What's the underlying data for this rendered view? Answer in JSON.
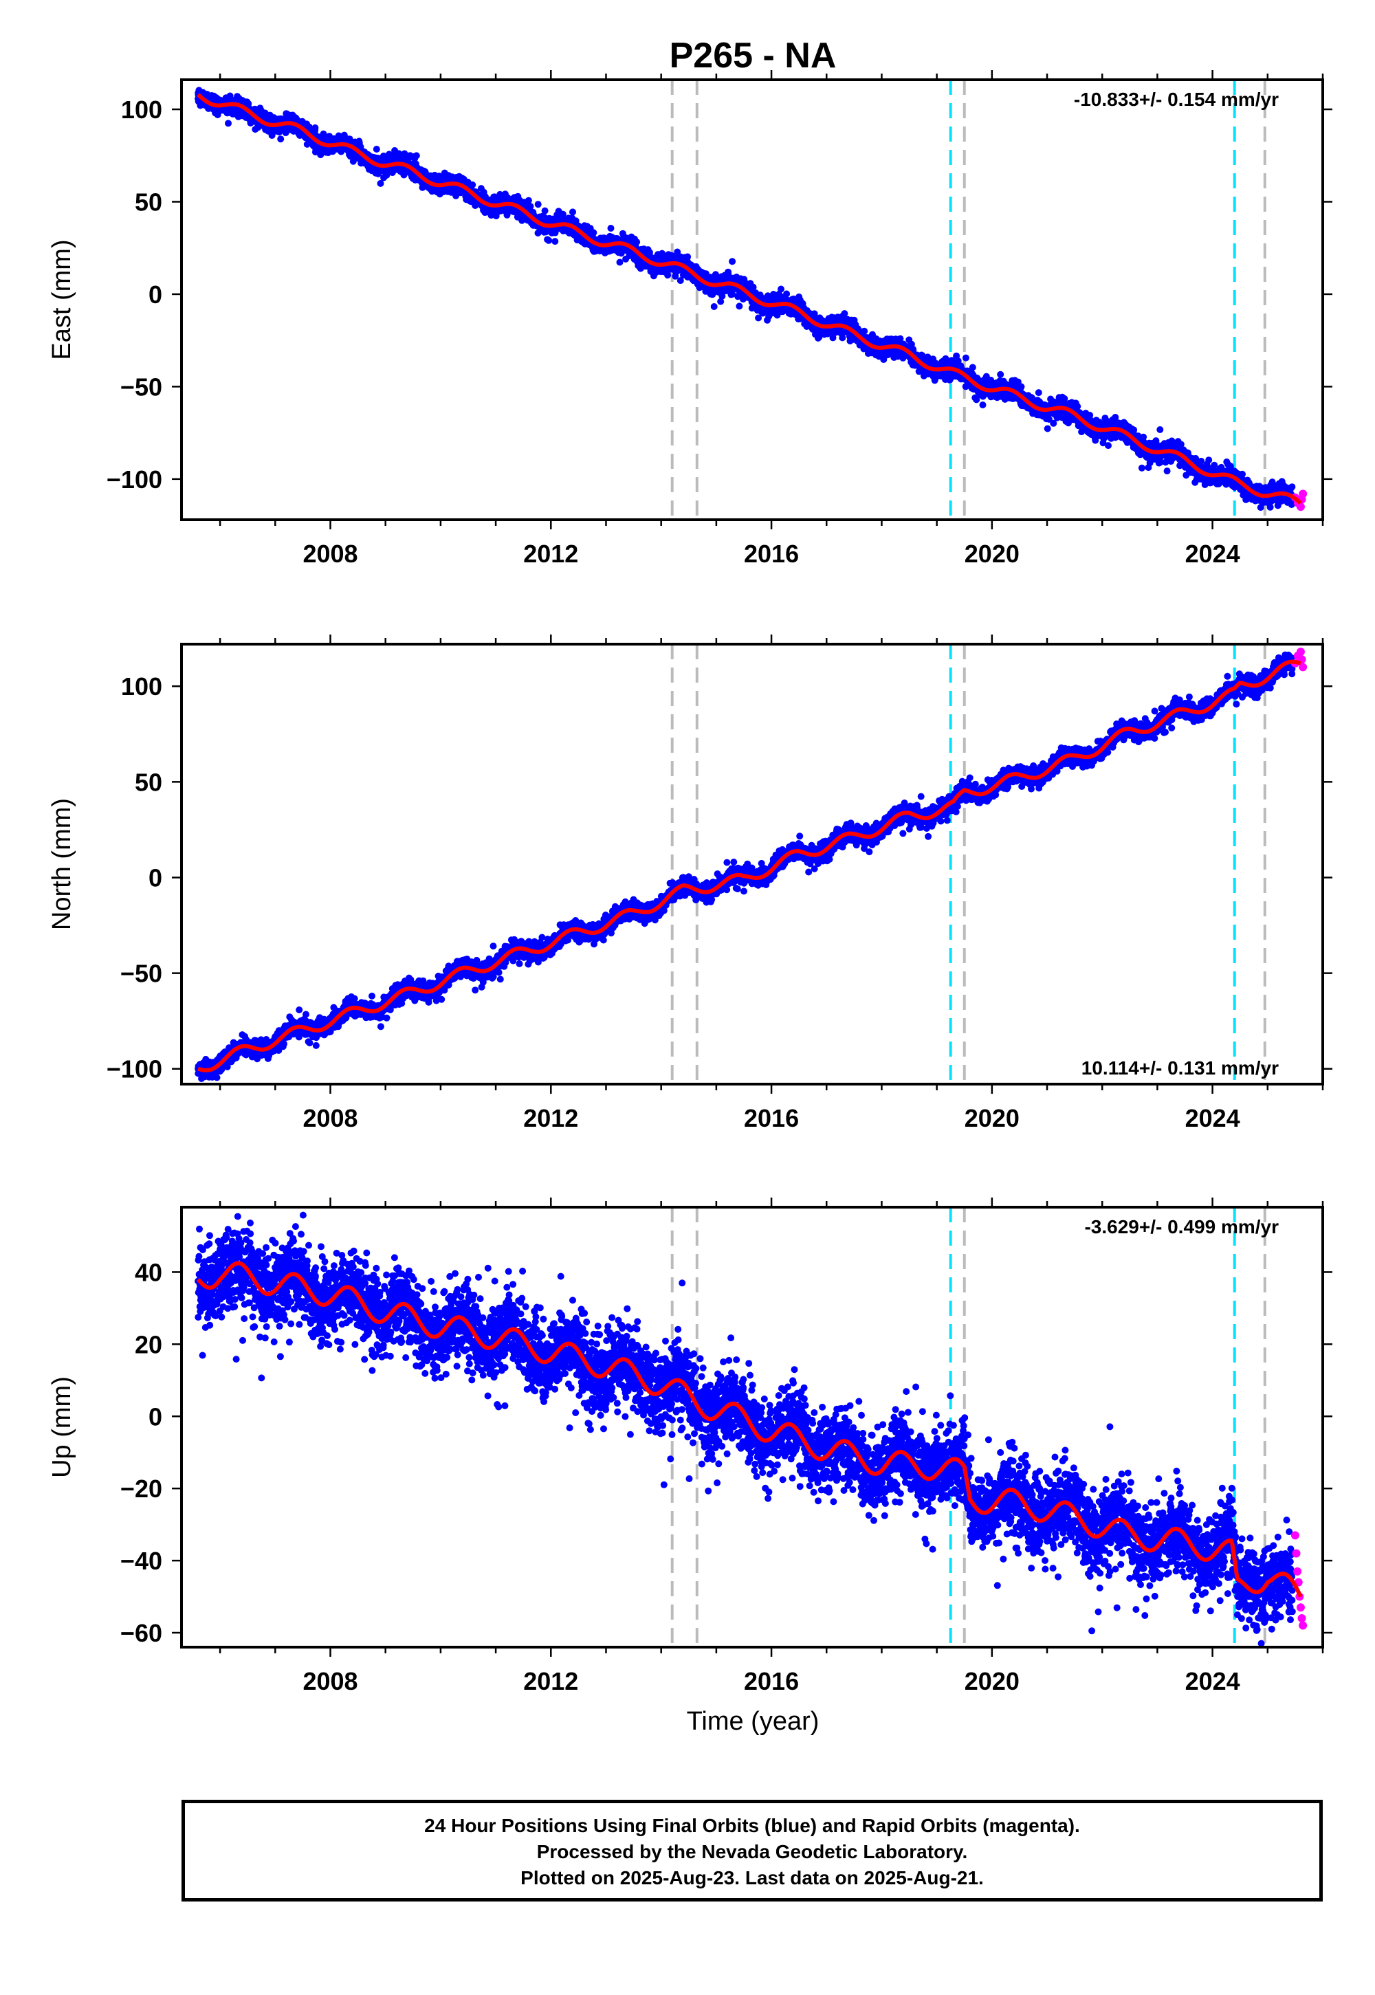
{
  "title": "P265 - NA",
  "xlabel": "Time (year)",
  "footer": {
    "line1": "24 Hour Positions Using Final Orbits (blue) and Rapid Orbits (magenta).",
    "line2": "Processed by the Nevada Geodetic Laboratory.",
    "line3": "Plotted on 2025-Aug-23. Last data on 2025-Aug-21."
  },
  "colors": {
    "final_orbits": "#0000ff",
    "rapid_orbits": "#ff00ff",
    "model_fit": "#ff0000",
    "equipment_change": "#bbbbbb",
    "earthquake": "#00e5ff"
  },
  "chart_data": [
    {
      "type": "scatter",
      "name": "east",
      "ylabel": "East (mm)",
      "rate_label": "-10.833+/- 0.154 mm/yr",
      "rate_position": "top-right",
      "xlim": [
        2005.3,
        2026.0
      ],
      "ylim": [
        -122,
        116
      ],
      "xticks": [
        2008,
        2012,
        2016,
        2020,
        2024
      ],
      "yticks": [
        100,
        50,
        0,
        -50,
        -100
      ],
      "ytick_labels": [
        "100",
        "50",
        "0",
        "−50",
        "−100"
      ],
      "vlines_gray": [
        2014.2,
        2014.65,
        2019.5,
        2024.95
      ],
      "vlines_cyan": [
        2019.25,
        2024.4
      ],
      "trend": {
        "start_year": 2005.6,
        "start_value": 108,
        "rate": -10.833,
        "seasonal_amplitude": 2.5,
        "noise": 2.2
      },
      "fit_x": [
        2005.6,
        2006.5,
        2007.5,
        2008.5,
        2009.5,
        2010.5,
        2011.5,
        2012.5,
        2013.5,
        2014.4,
        2015.5,
        2016.5,
        2017.5,
        2018.5,
        2019.3,
        2019.5,
        2020.5,
        2021.5,
        2022.5,
        2023.5,
        2024.5,
        2025.6
      ],
      "fit_y": [
        108,
        98,
        88,
        76,
        66,
        55,
        44,
        33,
        23,
        13,
        1,
        -10,
        -22,
        -33,
        -43,
        -45,
        -56,
        -66,
        -78,
        -90,
        -103,
        -113
      ],
      "final_range": [
        2005.6,
        2025.45
      ],
      "rapid_points": [
        [
          2025.5,
          -110
        ],
        [
          2025.55,
          -113
        ],
        [
          2025.6,
          -115
        ],
        [
          2025.62,
          -111
        ],
        [
          2025.64,
          -108
        ]
      ]
    },
    {
      "type": "scatter",
      "name": "north",
      "ylabel": "North (mm)",
      "rate_label": "10.114+/- 0.131 mm/yr",
      "rate_position": "bottom-right",
      "xlim": [
        2005.3,
        2026.0
      ],
      "ylim": [
        -108,
        122
      ],
      "xticks": [
        2008,
        2012,
        2016,
        2020,
        2024
      ],
      "yticks": [
        100,
        50,
        0,
        -50,
        -100
      ],
      "ytick_labels": [
        "100",
        "50",
        "0",
        "−50",
        "−100"
      ],
      "vlines_gray": [
        2014.2,
        2014.65,
        2019.5,
        2024.95
      ],
      "vlines_cyan": [
        2019.25,
        2024.4
      ],
      "trend": {
        "start_year": 2005.6,
        "start_value": -100,
        "rate": 10.114,
        "seasonal_amplitude": 3.0,
        "noise": 2.0
      },
      "fit_x": [
        2005.6,
        2006.5,
        2007.5,
        2008.5,
        2009.5,
        2010.5,
        2011.5,
        2012.5,
        2013.5,
        2014.4,
        2015.5,
        2016.5,
        2017.5,
        2018.5,
        2019.3,
        2019.5,
        2020.5,
        2021.5,
        2022.5,
        2023.5,
        2024.4,
        2024.5,
        2025.6
      ],
      "fit_y": [
        -100,
        -90,
        -80,
        -70,
        -60,
        -49,
        -39,
        -29,
        -19,
        -7,
        -1,
        12,
        21,
        32,
        37,
        44,
        52,
        62,
        76,
        86,
        96,
        100,
        112
      ],
      "final_range": [
        2005.6,
        2025.45
      ],
      "rapid_points": [
        [
          2025.5,
          112
        ],
        [
          2025.55,
          116
        ],
        [
          2025.6,
          118
        ],
        [
          2025.62,
          114
        ],
        [
          2025.64,
          110
        ]
      ]
    },
    {
      "type": "scatter",
      "name": "up",
      "ylabel": "Up (mm)",
      "rate_label": "-3.629+/- 0.499 mm/yr",
      "rate_position": "top-right",
      "xlim": [
        2005.3,
        2026.0
      ],
      "ylim": [
        -64,
        58
      ],
      "xticks": [
        2008,
        2012,
        2016,
        2020,
        2024
      ],
      "yticks": [
        40,
        20,
        0,
        -20,
        -40,
        -60
      ],
      "ytick_labels": [
        "40",
        "20",
        "0",
        "−20",
        "−40",
        "−60"
      ],
      "vlines_gray": [
        2014.2,
        2014.65,
        2019.5,
        2024.95
      ],
      "vlines_cyan": [
        2019.25,
        2024.4
      ],
      "trend": {
        "start_year": 2005.6,
        "start_value": 40,
        "rate": -3.629,
        "seasonal_amplitude": 3.5,
        "noise": 5.0
      },
      "fit_x": [
        2005.6,
        2006.0,
        2007.0,
        2008.0,
        2009.0,
        2010.0,
        2011.0,
        2012.0,
        2013.0,
        2014.0,
        2014.65,
        2015.0,
        2016.0,
        2017.0,
        2018.0,
        2019.0,
        2019.5,
        2019.6,
        2020.5,
        2021.5,
        2022.5,
        2023.5,
        2024.35,
        2024.45,
        2025.0,
        2025.6
      ],
      "fit_y": [
        38,
        40,
        37,
        34,
        29,
        25,
        22,
        18,
        14,
        9,
        4,
        2,
        -4,
        -9,
        -13,
        -14,
        -16,
        -23,
        -24,
        -28,
        -33,
        -35,
        -38,
        -48,
        -44,
        -50
      ],
      "final_range": [
        2005.6,
        2025.45
      ],
      "rapid_points": [
        [
          2025.5,
          -33
        ],
        [
          2025.52,
          -38
        ],
        [
          2025.54,
          -43
        ],
        [
          2025.56,
          -46
        ],
        [
          2025.58,
          -50
        ],
        [
          2025.6,
          -53
        ],
        [
          2025.62,
          -56
        ],
        [
          2025.64,
          -58
        ]
      ]
    }
  ]
}
